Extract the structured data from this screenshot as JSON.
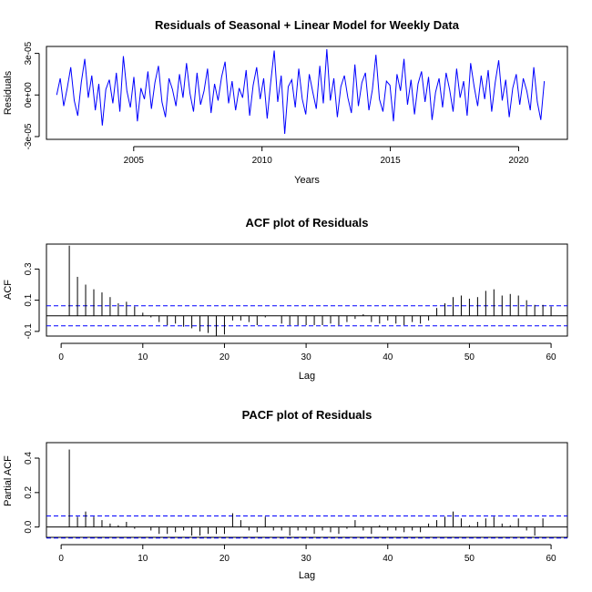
{
  "chart_data": [
    {
      "type": "line",
      "title": "Residuals of Seasonal + Linear Model for Weekly Data",
      "xlabel": "Years",
      "ylabel": "Residuals",
      "xlim": [
        2001.6,
        2021.9
      ],
      "ylim": [
        -3.2e-05,
        3.5e-05
      ],
      "xticks": [
        2005,
        2010,
        2015,
        2020
      ],
      "xtick_labels": [
        "2005",
        "2010",
        "2015",
        "2020"
      ],
      "yticks": [
        -3e-05,
        0,
        3e-05
      ],
      "ytick_labels": [
        "-3e-05",
        "0e+00",
        "3e-05"
      ],
      "x_start": 2002.0,
      "x_end": 2021.0,
      "color": "#0000ff",
      "series": [
        {
          "values": [
            0.0,
            1.2e-05,
            -8e-06,
            5e-06,
            2e-05,
            -4e-06,
            -1.5e-05,
            9e-06,
            2.6e-05,
            -2e-06,
            1.4e-05,
            -1.1e-05,
            8e-06,
            -2.2e-05,
            4e-06,
            1.1e-05,
            -6e-06,
            1.6e-05,
            -1.2e-05,
            2.8e-05,
            3e-06,
            -9e-06,
            1.3e-05,
            -1.9e-05,
            5e-06,
            -3e-06,
            1.7e-05,
            -1e-05,
            9e-06,
            2.1e-05,
            -5e-06,
            -1.6e-05,
            1.2e-05,
            4e-06,
            -8e-06,
            1.5e-05,
            -2e-06,
            2.3e-05,
            1e-06,
            -1.2e-05,
            1.6e-05,
            -7e-06,
            3e-06,
            1.9e-05,
            -1.3e-05,
            8e-06,
            -4e-06,
            1.3e-05,
            2.4e-05,
            -6e-06,
            1e-05,
            -1.1e-05,
            5e-06,
            -2e-06,
            1.8e-05,
            -1.5e-05,
            7e-06,
            2e-05,
            -3e-06,
            1.2e-05,
            -1.7e-05,
            9e-06,
            3.2e-05,
            -5e-06,
            1.4e-05,
            -2.8e-05,
            6e-06,
            1.1e-05,
            -9e-06,
            1.9e-05,
            -3e-06,
            -1.4e-05,
            1.5e-05,
            2e-06,
            -1e-05,
            2.1e-05,
            -6e-06,
            3.3e-05,
            -4e-06,
            1.2e-05,
            -1.6e-05,
            6e-06,
            1.4e-05,
            -2e-06,
            -1.3e-05,
            2.2e-05,
            -8e-06,
            9e-06,
            1.6e-05,
            -1.1e-05,
            4e-06,
            2.9e-05,
            -3e-06,
            -1.2e-05,
            1e-05,
            7e-06,
            -1.9e-05,
            1.5e-05,
            3e-06,
            2.6e-05,
            -7e-06,
            1.1e-05,
            -1.4e-05,
            8e-06,
            1.7e-05,
            -5e-06,
            1.3e-05,
            -1.8e-05,
            2e-06,
            1.2e-05,
            -9e-06,
            1.6e-05,
            4e-06,
            -1.2e-05,
            1.9e-05,
            -2e-06,
            1e-05,
            -1.5e-05,
            2.3e-05,
            6e-06,
            -8e-06,
            1.4e-05,
            -3e-06,
            1.8e-05,
            -1.2e-05,
            9e-06,
            2.5e-05,
            -4e-06,
            1.1e-05,
            -1.6e-05,
            5e-06,
            1.5e-05,
            -7e-06,
            1.2e-05,
            3e-06,
            -1.1e-05,
            2e-05,
            -5e-06,
            -1.8e-05,
            1e-05
          ]
        }
      ]
    },
    {
      "type": "bar",
      "title": "ACF plot of Residuals",
      "xlabel": "Lag",
      "ylabel": "ACF",
      "xlim": [
        -1.8,
        62
      ],
      "ylim": [
        -0.13,
        0.46
      ],
      "xticks": [
        0,
        10,
        20,
        30,
        40,
        50,
        60
      ],
      "xtick_labels": [
        "0",
        "10",
        "20",
        "30",
        "40",
        "50",
        "60"
      ],
      "yticks": [
        -0.1,
        0.1,
        0.3
      ],
      "ytick_labels": [
        "-0.1",
        "0.1",
        "0.3"
      ],
      "ci": 0.064,
      "x": [
        1,
        2,
        3,
        4,
        5,
        6,
        7,
        8,
        9,
        10,
        11,
        12,
        13,
        14,
        15,
        16,
        17,
        18,
        19,
        20,
        21,
        22,
        23,
        24,
        25,
        26,
        27,
        28,
        29,
        30,
        31,
        32,
        33,
        34,
        35,
        36,
        37,
        38,
        39,
        40,
        41,
        42,
        43,
        44,
        45,
        46,
        47,
        48,
        49,
        50,
        51,
        52,
        53,
        54,
        55,
        56,
        57,
        58,
        59,
        60
      ],
      "values": [
        0.45,
        0.25,
        0.2,
        0.17,
        0.15,
        0.12,
        0.08,
        0.09,
        0.06,
        0.02,
        -0.01,
        -0.04,
        -0.06,
        -0.05,
        -0.07,
        -0.08,
        -0.1,
        -0.11,
        -0.13,
        -0.12,
        -0.03,
        -0.03,
        -0.04,
        -0.06,
        -0.01,
        0.0,
        -0.05,
        -0.06,
        -0.06,
        -0.06,
        -0.06,
        -0.06,
        -0.05,
        -0.06,
        -0.04,
        -0.02,
        0.01,
        -0.04,
        -0.05,
        -0.03,
        -0.05,
        -0.06,
        -0.04,
        -0.05,
        -0.03,
        0.05,
        0.08,
        0.12,
        0.13,
        0.11,
        0.12,
        0.16,
        0.17,
        0.13,
        0.14,
        0.13,
        0.1,
        0.07,
        0.07,
        0.06
      ]
    },
    {
      "type": "bar",
      "title": "PACF plot of Residuals",
      "xlabel": "Lag",
      "ylabel": "Partial ACF",
      "xlim": [
        -1.8,
        62
      ],
      "ylim": [
        -0.06,
        0.49
      ],
      "xticks": [
        0,
        10,
        20,
        30,
        40,
        50,
        60
      ],
      "xtick_labels": [
        "0",
        "10",
        "20",
        "30",
        "40",
        "50",
        "60"
      ],
      "yticks": [
        0.0,
        0.2,
        0.4
      ],
      "ytick_labels": [
        "0.0",
        "0.2",
        "0.4"
      ],
      "ci": 0.064,
      "x": [
        1,
        2,
        3,
        4,
        5,
        6,
        7,
        8,
        9,
        10,
        11,
        12,
        13,
        14,
        15,
        16,
        17,
        18,
        19,
        20,
        21,
        22,
        23,
        24,
        25,
        26,
        27,
        28,
        29,
        30,
        31,
        32,
        33,
        34,
        35,
        36,
        37,
        38,
        39,
        40,
        41,
        42,
        43,
        44,
        45,
        46,
        47,
        48,
        49,
        50,
        51,
        52,
        53,
        54,
        55,
        56,
        57,
        58,
        59,
        60
      ],
      "values": [
        0.45,
        0.06,
        0.09,
        0.06,
        0.04,
        0.02,
        0.01,
        0.03,
        -0.01,
        0.0,
        -0.02,
        -0.04,
        -0.04,
        -0.03,
        -0.02,
        -0.05,
        -0.05,
        -0.04,
        -0.04,
        -0.04,
        0.08,
        0.04,
        -0.02,
        -0.03,
        0.06,
        -0.02,
        -0.02,
        -0.05,
        -0.02,
        -0.02,
        -0.04,
        -0.02,
        -0.03,
        -0.04,
        -0.01,
        0.04,
        -0.02,
        -0.04,
        0.01,
        -0.02,
        -0.02,
        -0.03,
        -0.02,
        -0.03,
        0.02,
        0.04,
        0.06,
        0.09,
        0.05,
        0.01,
        0.03,
        0.05,
        0.06,
        0.02,
        0.01,
        0.05,
        -0.02,
        -0.05,
        0.05,
        0.0
      ]
    }
  ]
}
